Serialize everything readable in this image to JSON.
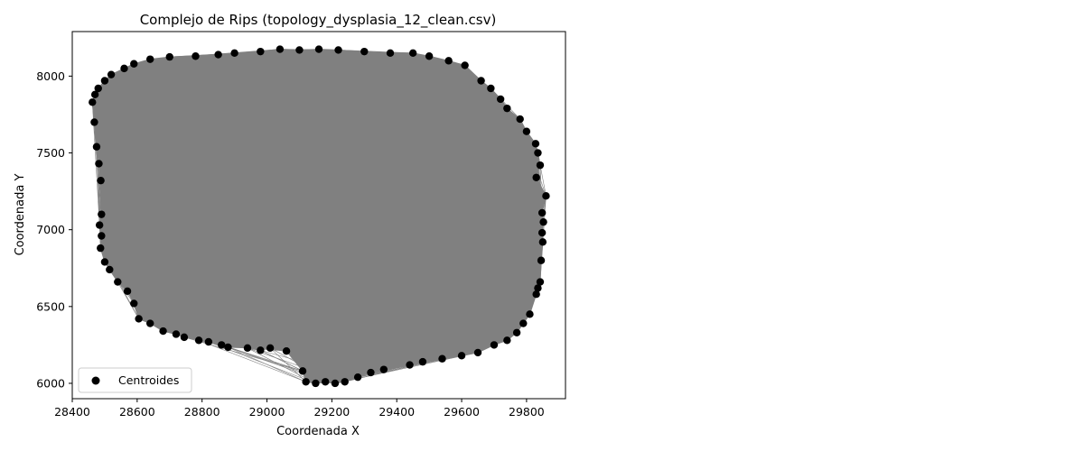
{
  "chart_data": {
    "type": "scatter",
    "title": "Complejo de Rips (topology_dysplasia_12_clean.csv)",
    "xlabel": "Coordenada X",
    "ylabel": "Coordenada Y",
    "xlim": [
      28400,
      29920
    ],
    "ylim": [
      5900,
      8290
    ],
    "x_ticks": [
      28400,
      28600,
      28800,
      29000,
      29200,
      29400,
      29600,
      29800
    ],
    "y_ticks": [
      6000,
      6500,
      7000,
      7500,
      8000
    ],
    "legend": {
      "placement": "lower-left",
      "entries": [
        "Centroides"
      ]
    },
    "grid": false,
    "colors": {
      "points": "#000000",
      "edges": "#808080",
      "fill": "#808080"
    },
    "series": [
      {
        "name": "Centroides",
        "points": [
          [
            28470,
            7880
          ],
          [
            28462,
            7830
          ],
          [
            28468,
            7700
          ],
          [
            28475,
            7540
          ],
          [
            28482,
            7430
          ],
          [
            28488,
            7320
          ],
          [
            28490,
            7100
          ],
          [
            28484,
            7030
          ],
          [
            28490,
            6960
          ],
          [
            28487,
            6880
          ],
          [
            28500,
            6790
          ],
          [
            28515,
            6740
          ],
          [
            28540,
            6660
          ],
          [
            28570,
            6600
          ],
          [
            28590,
            6520
          ],
          [
            28605,
            6420
          ],
          [
            28640,
            6390
          ],
          [
            28680,
            6340
          ],
          [
            28720,
            6320
          ],
          [
            28745,
            6300
          ],
          [
            28790,
            6280
          ],
          [
            28820,
            6270
          ],
          [
            28860,
            6250
          ],
          [
            28880,
            6235
          ],
          [
            28940,
            6230
          ],
          [
            28980,
            6215
          ],
          [
            29010,
            6230
          ],
          [
            29060,
            6210
          ],
          [
            29110,
            6080
          ],
          [
            29120,
            6010
          ],
          [
            29150,
            6000
          ],
          [
            29180,
            6010
          ],
          [
            29210,
            6000
          ],
          [
            29240,
            6010
          ],
          [
            29280,
            6040
          ],
          [
            29320,
            6070
          ],
          [
            29360,
            6090
          ],
          [
            29440,
            6120
          ],
          [
            29480,
            6140
          ],
          [
            29540,
            6160
          ],
          [
            29600,
            6180
          ],
          [
            29650,
            6200
          ],
          [
            29700,
            6250
          ],
          [
            29740,
            6280
          ],
          [
            29770,
            6330
          ],
          [
            29790,
            6390
          ],
          [
            29810,
            6450
          ],
          [
            29830,
            6580
          ],
          [
            29835,
            6620
          ],
          [
            29842,
            6660
          ],
          [
            29845,
            6800
          ],
          [
            29850,
            6920
          ],
          [
            29848,
            6980
          ],
          [
            29852,
            7050
          ],
          [
            29848,
            7110
          ],
          [
            29860,
            7220
          ],
          [
            29830,
            7340
          ],
          [
            29842,
            7420
          ],
          [
            29835,
            7500
          ],
          [
            29828,
            7560
          ],
          [
            29800,
            7640
          ],
          [
            29780,
            7720
          ],
          [
            29740,
            7790
          ],
          [
            29720,
            7850
          ],
          [
            29690,
            7920
          ],
          [
            29660,
            7970
          ],
          [
            29610,
            8070
          ],
          [
            29560,
            8100
          ],
          [
            29500,
            8130
          ],
          [
            29450,
            8150
          ],
          [
            29380,
            8150
          ],
          [
            29300,
            8160
          ],
          [
            29220,
            8170
          ],
          [
            29160,
            8175
          ],
          [
            29100,
            8170
          ],
          [
            29040,
            8175
          ],
          [
            28980,
            8160
          ],
          [
            28900,
            8150
          ],
          [
            28850,
            8140
          ],
          [
            28780,
            8130
          ],
          [
            28700,
            8125
          ],
          [
            28640,
            8110
          ],
          [
            28590,
            8080
          ],
          [
            28560,
            8050
          ],
          [
            28520,
            8010
          ],
          [
            28500,
            7970
          ],
          [
            28480,
            7920
          ]
        ]
      }
    ]
  }
}
